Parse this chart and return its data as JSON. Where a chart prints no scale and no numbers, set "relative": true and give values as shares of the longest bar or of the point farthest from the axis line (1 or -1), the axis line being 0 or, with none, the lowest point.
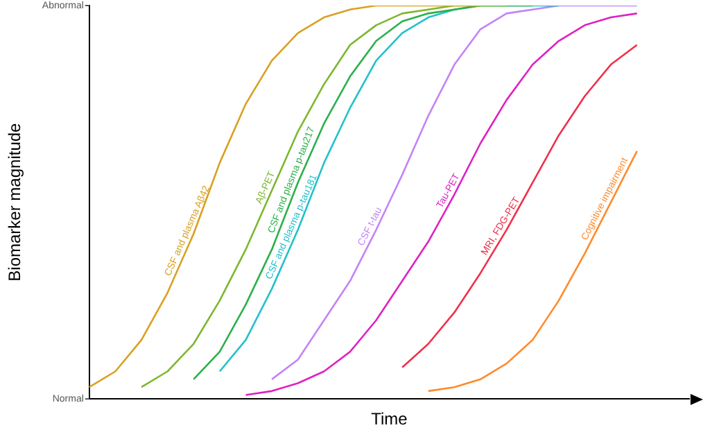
{
  "chart_data": {
    "type": "line",
    "xlabel": "Time",
    "ylabel": "Biomarker magnitude",
    "categories": [
      null,
      null,
      null,
      null,
      null,
      null,
      null,
      null,
      null,
      null,
      null,
      null,
      null,
      null,
      null,
      null,
      null,
      null,
      null,
      null,
      null,
      null,
      null,
      null
    ],
    "relative": true,
    "annotations": [
      "Normal",
      "Abnormal"
    ],
    "grid": false,
    "legend": false,
    "marker": "none",
    "line_style": "solid",
    "series": [
      {
        "name": "CSF and plasma Aβ42",
        "color": "#d9a021",
        "values": [
          0.03,
          0.07,
          0.15,
          0.27,
          0.42,
          0.6,
          0.75,
          0.86,
          0.93,
          0.97,
          0.99,
          1,
          1,
          1,
          1,
          1,
          null,
          null,
          null,
          null,
          null,
          null,
          null,
          null
        ]
      },
      {
        "name": "Aβ-PET",
        "color": "#7db72f",
        "values": [
          null,
          null,
          0.03,
          0.07,
          0.14,
          0.25,
          0.38,
          0.53,
          0.68,
          0.8,
          0.9,
          0.95,
          0.98,
          0.99,
          1,
          1,
          1,
          null,
          null,
          null,
          null,
          null,
          null,
          null
        ]
      },
      {
        "name": "CSF and plasma p-tau217",
        "color": "#2bb04a",
        "values": [
          null,
          null,
          null,
          null,
          0.05,
          0.12,
          0.24,
          0.38,
          0.55,
          0.7,
          0.82,
          0.91,
          0.96,
          0.98,
          0.99,
          1,
          1,
          1,
          null,
          null,
          null,
          null,
          null,
          null
        ]
      },
      {
        "name": "CSF and plasma p-tau181",
        "color": "#22c1c9",
        "values": [
          null,
          null,
          null,
          null,
          null,
          0.07,
          0.15,
          0.28,
          0.43,
          0.6,
          0.74,
          0.86,
          0.93,
          0.97,
          0.99,
          1,
          1,
          1,
          1,
          null,
          null,
          null,
          null,
          null
        ]
      },
      {
        "name": "CSF t-tau",
        "color": "#c483f7",
        "values": [
          null,
          null,
          null,
          null,
          null,
          null,
          null,
          0.05,
          0.1,
          0.2,
          0.3,
          0.43,
          0.57,
          0.72,
          0.85,
          0.94,
          0.98,
          0.99,
          1,
          1,
          1,
          1,
          null,
          null
        ]
      },
      {
        "name": "Tau-PET",
        "color": "#dd22c3",
        "values": [
          null,
          null,
          null,
          null,
          null,
          null,
          0.01,
          0.02,
          0.04,
          0.07,
          0.12,
          0.2,
          0.3,
          0.4,
          0.52,
          0.65,
          0.76,
          0.85,
          0.91,
          0.95,
          0.97,
          0.98,
          null,
          null
        ]
      },
      {
        "name": "MRI, FDG-PET",
        "color": "#f0304a",
        "values": [
          null,
          null,
          null,
          null,
          null,
          null,
          null,
          null,
          null,
          null,
          null,
          null,
          0.08,
          0.14,
          0.22,
          0.32,
          0.43,
          0.55,
          0.67,
          0.77,
          0.85,
          0.9,
          null,
          null
        ]
      },
      {
        "name": "Cognitive impairment",
        "color": "#ff8a2a",
        "values": [
          null,
          null,
          null,
          null,
          null,
          null,
          null,
          null,
          null,
          null,
          null,
          null,
          null,
          0.02,
          0.03,
          0.05,
          0.09,
          0.15,
          0.25,
          0.37,
          0.5,
          0.63,
          null,
          null
        ]
      }
    ]
  }
}
